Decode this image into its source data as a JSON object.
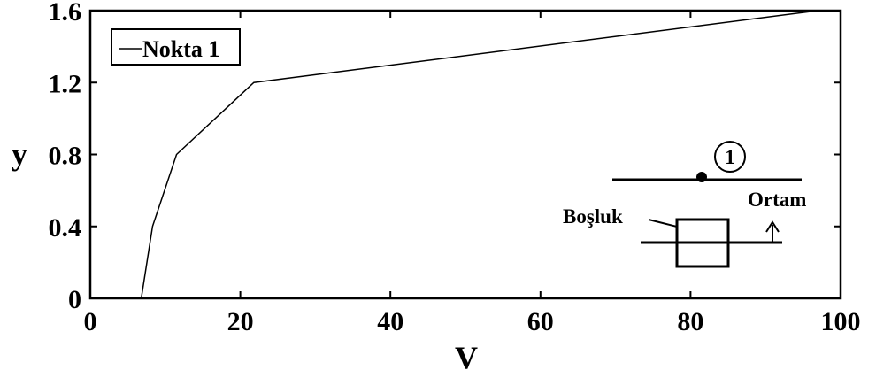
{
  "chart_data": {
    "type": "line",
    "title": "",
    "xlabel": "V",
    "ylabel": "y",
    "xlim": [
      0,
      100
    ],
    "ylim": [
      0,
      1.6
    ],
    "xticks": [
      0,
      20,
      40,
      60,
      80,
      100
    ],
    "yticks": [
      0,
      0.4,
      0.8,
      1.2,
      1.6
    ],
    "xtick_labels": [
      "0",
      "20",
      "40",
      "60",
      "80",
      "100"
    ],
    "ytick_labels": [
      "0",
      "0.4",
      "0.8",
      "1.2",
      "1.6"
    ],
    "grid": false,
    "legend_position": "top-left",
    "series": [
      {
        "name": "Nokta 1",
        "color": "#000000",
        "x": [
          6.8,
          8.3,
          11.5,
          21.8,
          97.0
        ],
        "y": [
          0,
          0.4,
          0.8,
          1.2,
          1.6
        ]
      }
    ]
  },
  "inset": {
    "point_label": "1",
    "gap_label": "Boşluk",
    "medium_label": "Ortam"
  }
}
